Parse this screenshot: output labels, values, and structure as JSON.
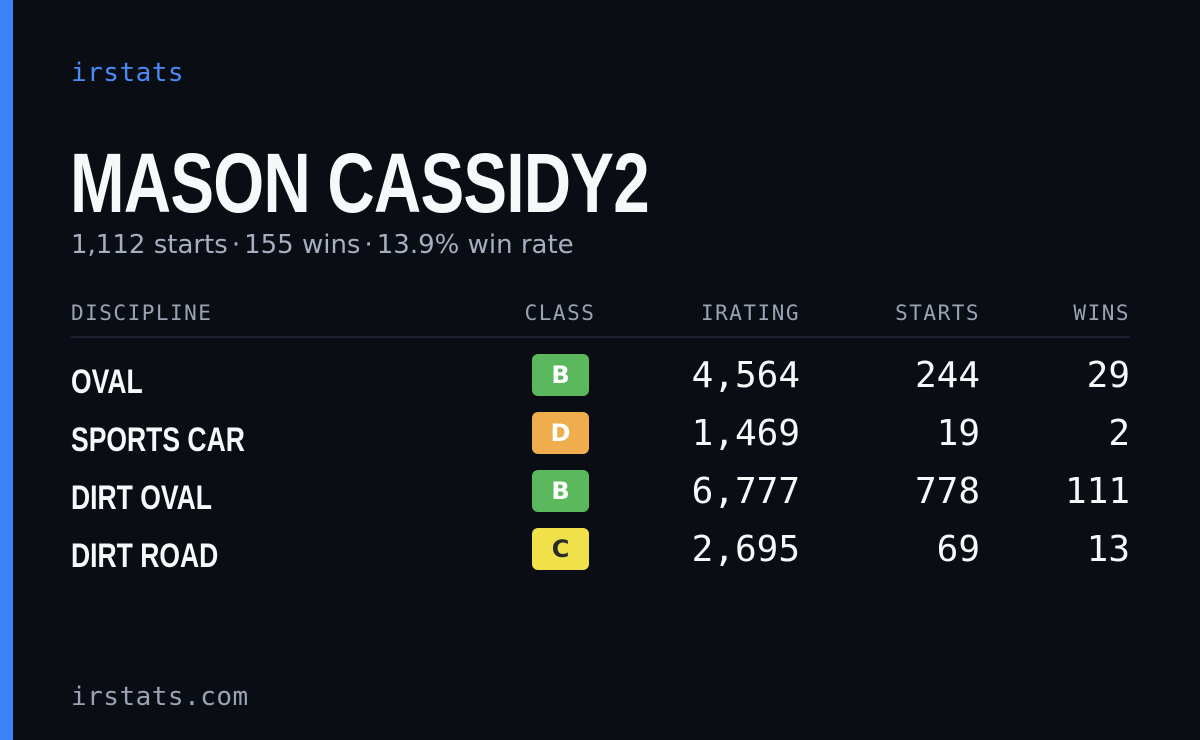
{
  "brand": "irstats",
  "driver": {
    "name": "MASON CASSIDY2",
    "starts": "1,112 starts",
    "wins": "155 wins",
    "win_rate": "13.9% win rate",
    "separator": "·"
  },
  "table": {
    "headers": {
      "discipline": "DISCIPLINE",
      "class": "CLASS",
      "irating": "IRATING",
      "starts": "STARTS",
      "wins": "WINS"
    },
    "rows": [
      {
        "discipline": "OVAL",
        "class": "B",
        "class_color": "#5cb85c",
        "class_text_color": "#ffffff",
        "irating": "4,564",
        "starts": "244",
        "wins": "29"
      },
      {
        "discipline": "SPORTS CAR",
        "class": "D",
        "class_color": "#f0ad4e",
        "class_text_color": "#ffffff",
        "irating": "1,469",
        "starts": "19",
        "wins": "2"
      },
      {
        "discipline": "DIRT OVAL",
        "class": "B",
        "class_color": "#5cb85c",
        "class_text_color": "#ffffff",
        "irating": "6,777",
        "starts": "778",
        "wins": "111"
      },
      {
        "discipline": "DIRT ROAD",
        "class": "C",
        "class_color": "#f0e14a",
        "class_text_color": "#2a2a2a",
        "irating": "2,695",
        "starts": "69",
        "wins": "13"
      }
    ]
  },
  "footer": "irstats.com",
  "colors": {
    "background": "#0a0d14",
    "accent": "#3b82f6",
    "brand": "#4a8cf7"
  }
}
